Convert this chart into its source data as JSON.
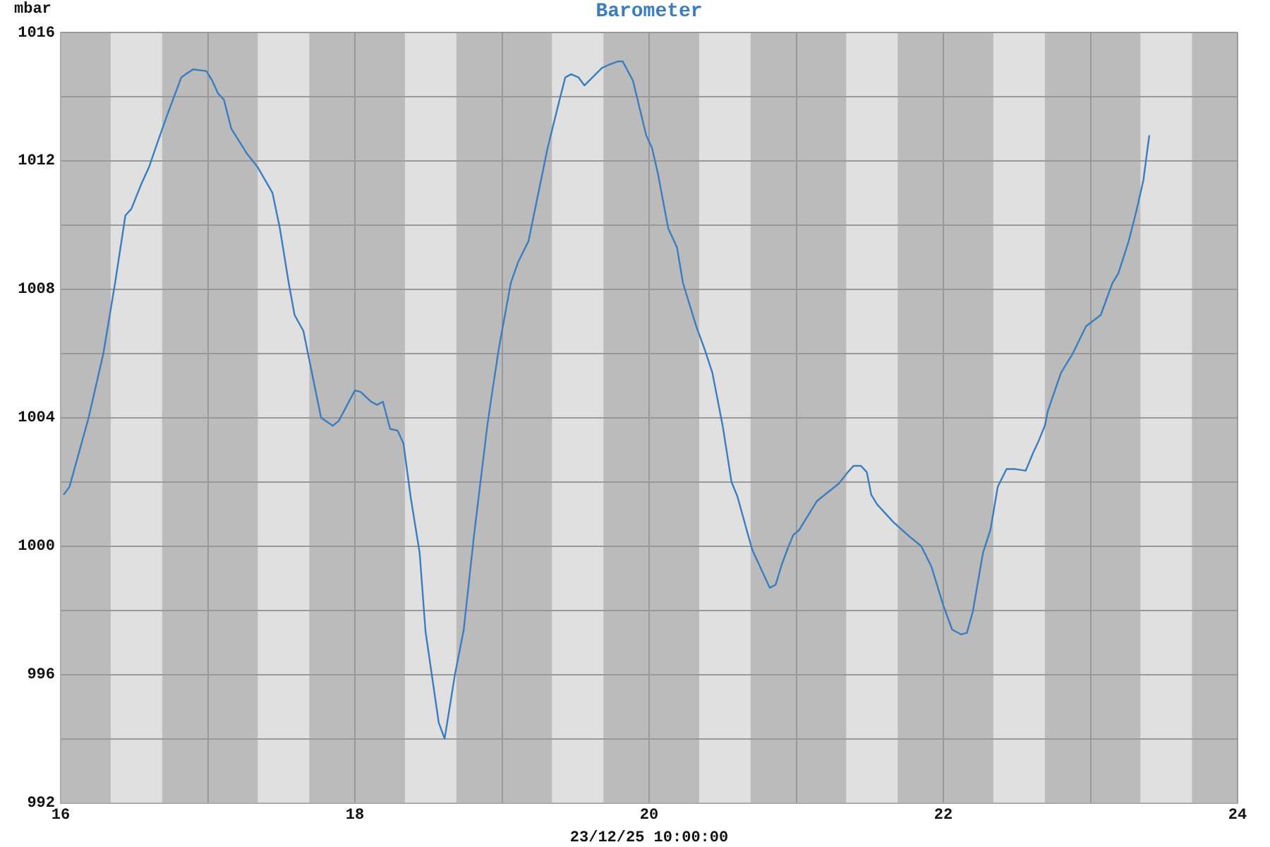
{
  "chart_data": {
    "type": "line",
    "title": "Barometer",
    "xlabel": "23/12/25 10:00:00",
    "ylabel": "mbar",
    "xlim": [
      16,
      24
    ],
    "xticks": [
      16,
      {
        "value": 17,
        "label": null
      },
      18,
      {
        "value": 19,
        "label": null
      },
      20,
      {
        "value": 21,
        "label": null
      },
      22,
      {
        "value": 23,
        "label": null
      },
      24
    ],
    "ylim": [
      992,
      1016
    ],
    "yticks": [
      992,
      {
        "value": 994,
        "label": null
      },
      996,
      {
        "value": 998,
        "label": null
      },
      1000,
      {
        "value": 1002,
        "label": null
      },
      1004,
      {
        "value": 1006,
        "label": null
      },
      1008,
      {
        "value": 1010,
        "label": null
      },
      1012,
      {
        "value": 1014,
        "label": null
      },
      1016
    ],
    "grid": true,
    "legend": false,
    "marker": "none",
    "line_style": "solid",
    "bands": [
      {
        "axis": "x",
        "from": 16.34,
        "to": 16.69,
        "color": "#e0e0e0"
      },
      {
        "axis": "x",
        "from": 17.34,
        "to": 17.69,
        "color": "#e0e0e0"
      },
      {
        "axis": "x",
        "from": 18.34,
        "to": 18.69,
        "color": "#e0e0e0"
      },
      {
        "axis": "x",
        "from": 19.34,
        "to": 19.69,
        "color": "#e0e0e0"
      },
      {
        "axis": "x",
        "from": 20.34,
        "to": 20.69,
        "color": "#e0e0e0"
      },
      {
        "axis": "x",
        "from": 21.34,
        "to": 21.69,
        "color": "#e0e0e0"
      },
      {
        "axis": "x",
        "from": 22.34,
        "to": 22.69,
        "color": "#e0e0e0"
      },
      {
        "axis": "x",
        "from": 23.34,
        "to": 23.69,
        "color": "#e0e0e0"
      }
    ],
    "series": [
      {
        "color": "#3a7ebf",
        "x": [
          16.02,
          16.06,
          16.19,
          16.29,
          16.37,
          16.44,
          16.48,
          16.55,
          16.6,
          16.66,
          16.73,
          16.82,
          16.85,
          16.9,
          16.99,
          17.03,
          17.07,
          17.11,
          17.16,
          17.27,
          17.34,
          17.44,
          17.49,
          17.55,
          17.59,
          17.65,
          17.77,
          17.85,
          17.89,
          18.0,
          18.04,
          18.11,
          18.15,
          18.19,
          18.24,
          18.29,
          18.33,
          18.38,
          18.44,
          18.48,
          18.57,
          18.61,
          18.68,
          18.74,
          18.81,
          18.9,
          18.94,
          18.98,
          19.06,
          19.11,
          19.18,
          19.31,
          19.38,
          19.43,
          19.47,
          19.52,
          19.56,
          19.68,
          19.73,
          19.79,
          19.82,
          19.89,
          19.98,
          20.02,
          20.06,
          20.13,
          20.19,
          20.23,
          20.32,
          20.38,
          20.43,
          20.5,
          20.56,
          20.6,
          20.7,
          20.82,
          20.86,
          20.9,
          20.94,
          20.98,
          21.02,
          21.14,
          21.29,
          21.35,
          21.39,
          21.44,
          21.48,
          21.51,
          21.55,
          21.66,
          21.77,
          21.85,
          21.92,
          22.0,
          22.06,
          22.12,
          22.16,
          22.2,
          22.27,
          22.32,
          22.37,
          22.43,
          22.49,
          22.56,
          22.61,
          22.65,
          22.69,
          22.71,
          22.8,
          22.88,
          22.97,
          23.07,
          23.15,
          23.19,
          23.26,
          23.31,
          23.36,
          23.4
        ],
        "values": [
          1001.6,
          1001.85,
          1004.0,
          1006.0,
          1008.2,
          1010.3,
          1010.5,
          1011.3,
          1011.8,
          1012.6,
          1013.5,
          1014.6,
          1014.7,
          1014.85,
          1014.8,
          1014.5,
          1014.1,
          1013.9,
          1013.0,
          1012.2,
          1011.8,
          1011.0,
          1009.9,
          1008.2,
          1007.2,
          1006.7,
          1004.0,
          1003.75,
          1003.9,
          1004.85,
          1004.8,
          1004.5,
          1004.4,
          1004.5,
          1003.65,
          1003.6,
          1003.2,
          1001.5,
          999.8,
          997.35,
          994.5,
          994.0,
          996.0,
          997.4,
          1000.35,
          1003.75,
          1005.0,
          1006.2,
          1008.2,
          1008.85,
          1009.5,
          1012.4,
          1013.7,
          1014.6,
          1014.7,
          1014.6,
          1014.35,
          1014.9,
          1015.0,
          1015.1,
          1015.1,
          1014.5,
          1012.8,
          1012.4,
          1011.6,
          1009.9,
          1009.3,
          1008.2,
          1006.85,
          1006.1,
          1005.4,
          1003.75,
          1002.0,
          1001.55,
          999.9,
          998.7,
          998.8,
          999.4,
          999.9,
          1000.35,
          1000.5,
          1001.4,
          1001.95,
          1002.3,
          1002.5,
          1002.5,
          1002.3,
          1001.6,
          1001.3,
          1000.75,
          1000.3,
          1000.0,
          999.35,
          998.15,
          997.4,
          997.25,
          997.3,
          997.95,
          999.8,
          1000.5,
          1001.85,
          1002.4,
          1002.4,
          1002.35,
          1002.9,
          1003.3,
          1003.75,
          1004.2,
          1005.4,
          1006.0,
          1006.85,
          1007.2,
          1008.2,
          1008.5,
          1009.5,
          1010.4,
          1011.4,
          1012.8
        ]
      }
    ]
  }
}
